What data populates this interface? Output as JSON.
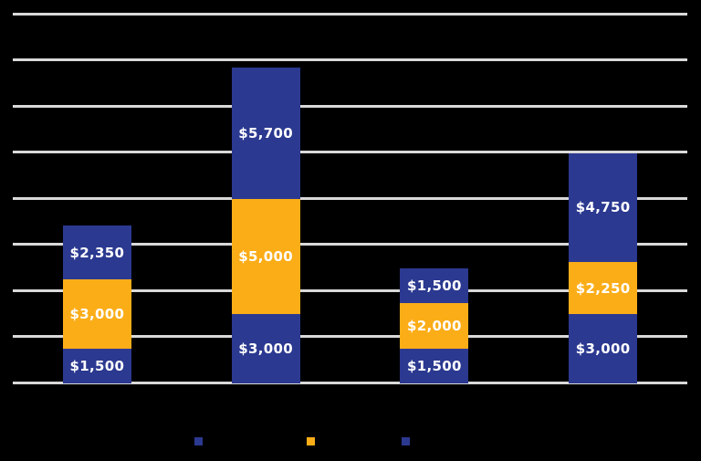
{
  "chart_data": {
    "type": "bar",
    "subtype": "stacked",
    "title": "",
    "categories": [
      "",
      "",
      "",
      ""
    ],
    "series": [
      {
        "name": "",
        "color": "#2B3990",
        "values": [
          1500,
          3000,
          1500,
          3000
        ],
        "data_labels": [
          "$1,500",
          "$3,000",
          "$1,500",
          "$3,000"
        ]
      },
      {
        "name": "",
        "color": "#FBAD18",
        "values": [
          3000,
          5000,
          2000,
          2250
        ],
        "data_labels": [
          "$3,000",
          "$5,000",
          "$2,000",
          "$2,250"
        ]
      },
      {
        "name": "",
        "color": "#2B3990",
        "values": [
          2350,
          5700,
          1500,
          4750
        ],
        "data_labels": [
          "$2,350",
          "$5,700",
          "$1,500",
          "$4,750"
        ]
      }
    ],
    "xlabel": "",
    "ylabel": "",
    "ylim": [
      0,
      16000
    ],
    "gridline_step": 2000,
    "grid": true,
    "legend_position": "bottom",
    "visibility_note": "Chart title, axis tick labels, category labels and legend label text are not visible (black text on black background); only bar segments, white data labels, gray gridlines and legend color swatches are rendered visibly."
  },
  "colors": {
    "background": "#000000",
    "bar_blue": "#2B3990",
    "bar_orange": "#FBAD18",
    "gridline": "#D9D9D9",
    "data_label_text": "#FFFFFF"
  },
  "legend": {
    "swatches": [
      {
        "color": "#2B3990"
      },
      {
        "color": "#FBAD18"
      },
      {
        "color": "#2B3990"
      }
    ]
  }
}
